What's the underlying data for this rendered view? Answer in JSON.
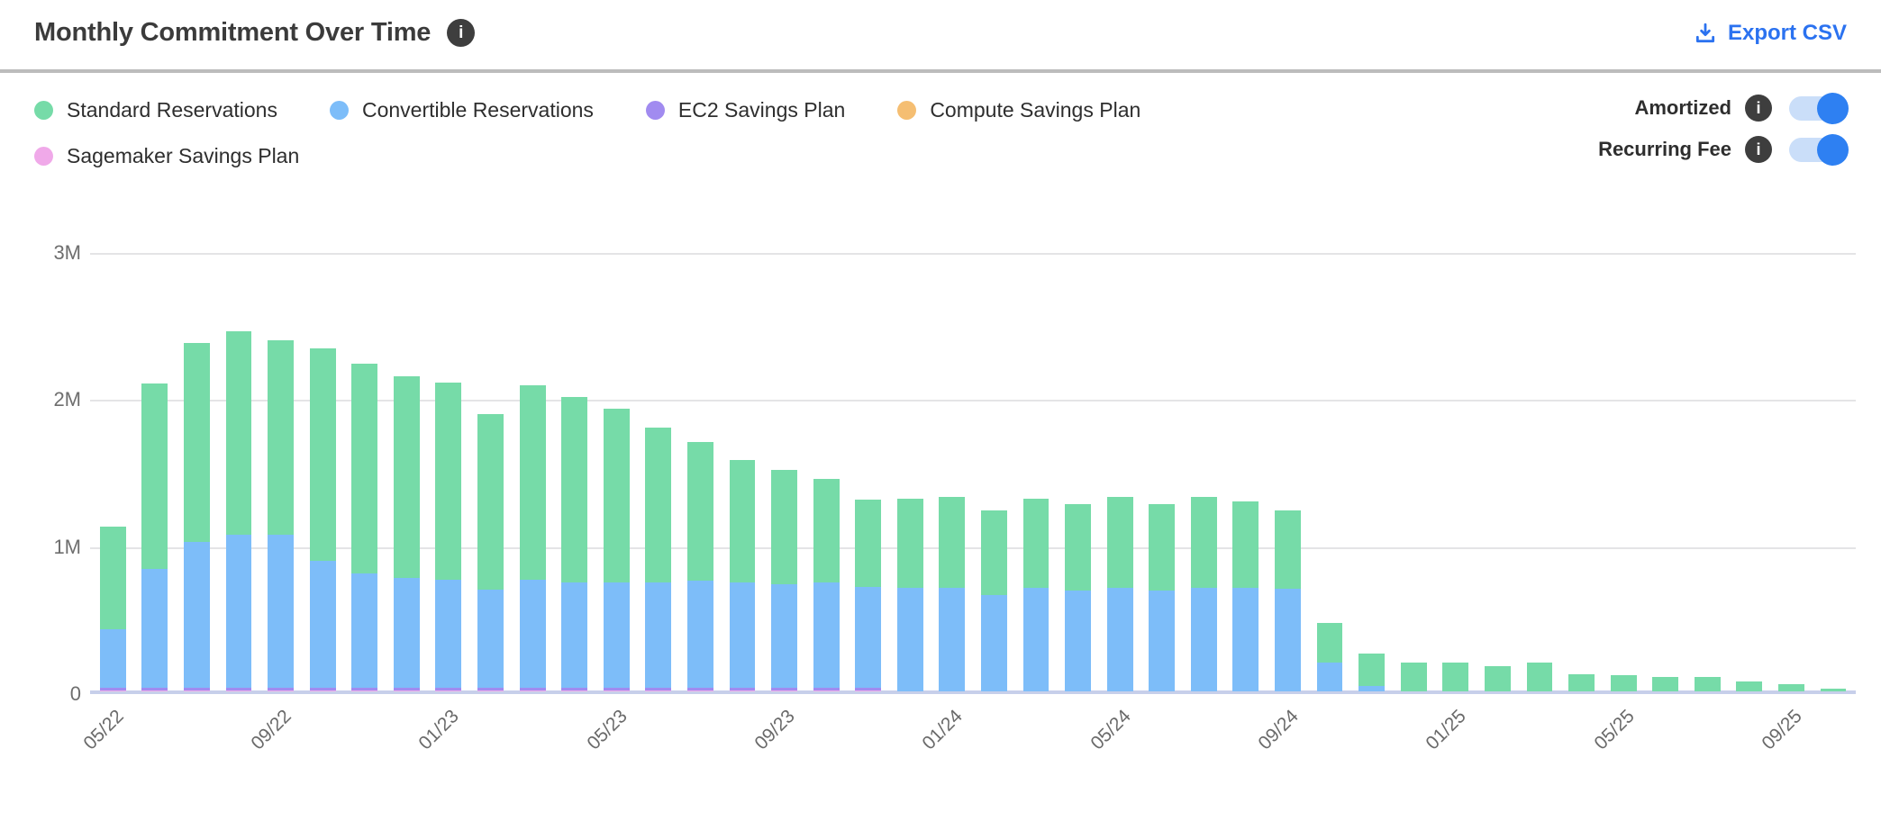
{
  "header": {
    "title": "Monthly Commitment Over Time",
    "export_label": "Export CSV"
  },
  "legend": {
    "items": [
      {
        "label": "Standard Reservations",
        "color": "#76dba8"
      },
      {
        "label": "Convertible Reservations",
        "color": "#7dbdf9"
      },
      {
        "label": "EC2 Savings Plan",
        "color": "#a18bf0"
      },
      {
        "label": "Compute Savings Plan",
        "color": "#f5be72"
      },
      {
        "label": "Sagemaker Savings Plan",
        "color": "#f0a9e9"
      }
    ]
  },
  "toggles": [
    {
      "label": "Amortized",
      "state": "on"
    },
    {
      "label": "Recurring Fee",
      "state": "on"
    }
  ],
  "colors": {
    "accent_blue": "#2b72f0",
    "toggle_knob": "#2e80f2",
    "toggle_track": "#cadef9",
    "info_badge": "#3e3e3e",
    "gridline": "#e4e4e6",
    "axis_line": "#c7cfea",
    "tick_text": "#6a6a6a"
  },
  "chart_data": {
    "type": "bar",
    "stacked": true,
    "title": "Monthly Commitment Over Time",
    "xlabel": "",
    "ylabel": "",
    "values_unit": "millions",
    "ymax": 3,
    "ylim": [
      0,
      3000000
    ],
    "grid": true,
    "legend_position": "top",
    "yticks": [
      "3M",
      "2M",
      "1M",
      "0"
    ],
    "x_tick_every": 4,
    "x_tick_labels": [
      "05/22",
      "09/22",
      "01/23",
      "05/23",
      "09/23",
      "01/24",
      "05/24",
      "09/24",
      "01/25",
      "05/25",
      "09/25"
    ],
    "categories": [
      "05/22",
      "06/22",
      "07/22",
      "08/22",
      "09/22",
      "10/22",
      "11/22",
      "12/22",
      "01/23",
      "02/23",
      "03/23",
      "04/23",
      "05/23",
      "06/23",
      "07/23",
      "08/23",
      "09/23",
      "10/23",
      "11/23",
      "12/23",
      "01/24",
      "02/24",
      "03/24",
      "04/24",
      "05/24",
      "06/24",
      "07/24",
      "08/24",
      "09/24",
      "10/24",
      "11/24",
      "12/24",
      "01/25",
      "02/25",
      "03/25",
      "04/25",
      "05/25",
      "06/25",
      "07/25",
      "08/25",
      "09/25",
      "10/25"
    ],
    "stack_order": [
      "Sagemaker Savings Plan",
      "Compute Savings Plan",
      "EC2 Savings Plan",
      "Convertible Reservations",
      "Standard Reservations"
    ],
    "series": [
      {
        "name": "Standard Reservations",
        "color": "#76dba8",
        "values": [
          0.7,
          1.27,
          1.36,
          1.39,
          1.33,
          1.45,
          1.44,
          1.38,
          1.35,
          1.2,
          1.33,
          1.27,
          1.19,
          1.06,
          0.95,
          0.84,
          0.78,
          0.71,
          0.6,
          0.61,
          0.62,
          0.58,
          0.61,
          0.59,
          0.62,
          0.59,
          0.62,
          0.59,
          0.54,
          0.27,
          0.22,
          0.2,
          0.2,
          0.17,
          0.2,
          0.12,
          0.11,
          0.1,
          0.1,
          0.07,
          0.05,
          0.02
        ]
      },
      {
        "name": "Convertible Reservations",
        "color": "#7dbdf9",
        "values": [
          0.4,
          0.81,
          1.0,
          1.05,
          1.05,
          0.87,
          0.78,
          0.75,
          0.74,
          0.67,
          0.74,
          0.72,
          0.72,
          0.72,
          0.73,
          0.72,
          0.71,
          0.72,
          0.69,
          0.71,
          0.71,
          0.66,
          0.71,
          0.69,
          0.71,
          0.69,
          0.71,
          0.71,
          0.7,
          0.2,
          0.04,
          0,
          0,
          0,
          0,
          0,
          0,
          0,
          0,
          0,
          0,
          0
        ]
      },
      {
        "name": "EC2 Savings Plan",
        "color": "#a18bf0",
        "values": [
          0.02,
          0.02,
          0.02,
          0.02,
          0.02,
          0.02,
          0.02,
          0.02,
          0.02,
          0.02,
          0.02,
          0.02,
          0.02,
          0.02,
          0.02,
          0.02,
          0.02,
          0.02,
          0.02,
          0,
          0,
          0,
          0,
          0,
          0,
          0,
          0,
          0,
          0,
          0,
          0,
          0,
          0,
          0,
          0,
          0,
          0,
          0,
          0,
          0,
          0,
          0
        ]
      },
      {
        "name": "Compute Savings Plan",
        "color": "#f5be72",
        "values": [
          0,
          0,
          0,
          0,
          0,
          0,
          0,
          0,
          0,
          0,
          0,
          0,
          0,
          0,
          0,
          0,
          0,
          0,
          0,
          0,
          0,
          0,
          0,
          0,
          0,
          0,
          0,
          0,
          0,
          0,
          0,
          0,
          0,
          0,
          0,
          0,
          0,
          0,
          0,
          0,
          0,
          0
        ]
      },
      {
        "name": "Sagemaker Savings Plan",
        "color": "#f0a9e9",
        "values": [
          0.005,
          0.005,
          0.005,
          0.005,
          0.005,
          0.005,
          0.005,
          0.005,
          0.005,
          0.005,
          0.005,
          0.005,
          0.005,
          0.005,
          0.005,
          0.005,
          0.005,
          0.005,
          0.005,
          0,
          0,
          0,
          0,
          0,
          0,
          0,
          0,
          0,
          0,
          0,
          0,
          0,
          0,
          0,
          0,
          0,
          0,
          0,
          0,
          0,
          0,
          0
        ]
      }
    ]
  }
}
